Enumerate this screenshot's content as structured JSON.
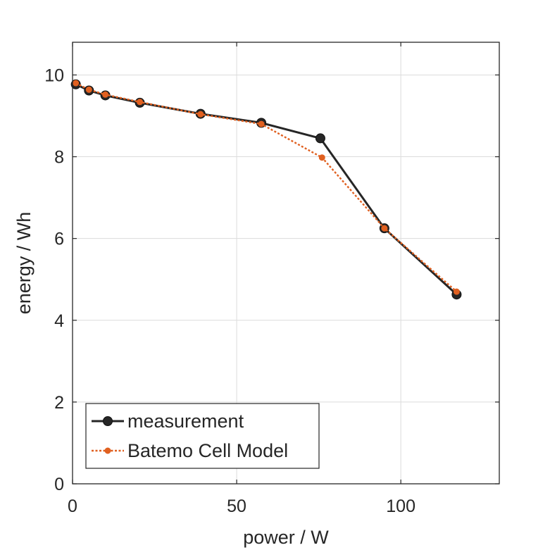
{
  "chart_data": {
    "type": "line",
    "title": "",
    "xlabel": "power / W",
    "ylabel": "energy / Wh",
    "xlim": [
      0,
      130
    ],
    "ylim": [
      0,
      10.8
    ],
    "xticks": [
      0,
      50,
      100
    ],
    "yticks": [
      0,
      2,
      4,
      6,
      8,
      10
    ],
    "grid": true,
    "legend_position": "bottom-left",
    "series": [
      {
        "name": "measurement",
        "color": "#262626",
        "line_style": "solid",
        "marker": "circle",
        "x": [
          1,
          5,
          10,
          20.5,
          39,
          57.5,
          75.5,
          95,
          117
        ],
        "y": [
          9.77,
          9.62,
          9.5,
          9.32,
          9.05,
          8.83,
          8.45,
          6.25,
          4.63
        ]
      },
      {
        "name": "Batemo Cell Model",
        "color": "#e06020",
        "line_style": "dotted",
        "marker": "circle",
        "x": [
          1,
          5,
          10,
          20.5,
          39,
          57.5,
          76,
          95,
          117
        ],
        "y": [
          9.8,
          9.64,
          9.52,
          9.34,
          9.04,
          8.8,
          7.98,
          6.25,
          4.7
        ]
      }
    ]
  }
}
